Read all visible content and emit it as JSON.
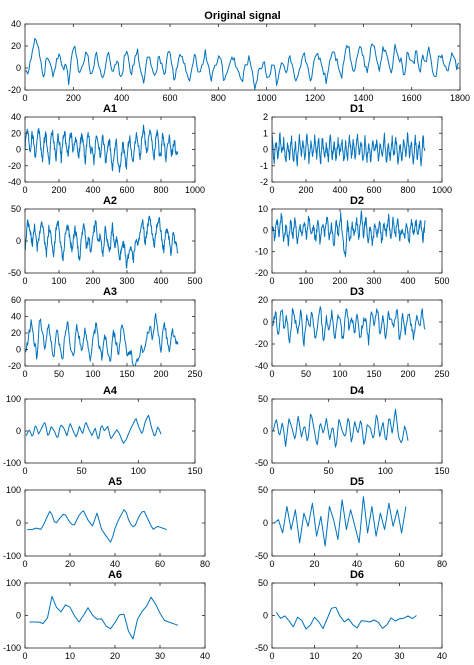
{
  "style": {
    "line_color": "#0072BD",
    "axes_color": "#262626",
    "background": "#ffffff",
    "grid": false
  },
  "chart_data": [
    {
      "type": "line",
      "title": "Original signal",
      "xlim": [
        0,
        1800
      ],
      "ylim": [
        -20,
        40
      ],
      "xticks": [
        "0",
        "200",
        "400",
        "600",
        "800",
        "1000",
        "1200",
        "1400",
        "1600",
        "1800"
      ],
      "yticks": [
        "-20",
        "0",
        "20",
        "40"
      ],
      "series": [
        {
          "n": 1800,
          "values": [
            0,
            -5,
            10,
            25,
            20,
            5,
            -8,
            12,
            3,
            -10,
            8,
            15,
            -3,
            6,
            -12,
            10,
            18,
            2,
            -6,
            9,
            14,
            -8,
            4,
            12,
            0,
            -10,
            6,
            16,
            -4,
            8,
            2,
            -12,
            10,
            14,
            -6,
            4,
            18,
            -2,
            -14,
            6,
            12,
            0,
            -8,
            10,
            4,
            -6,
            14,
            8,
            -10,
            2,
            12,
            6,
            -4,
            -16,
            8,
            10,
            -6,
            4,
            14,
            2,
            -10,
            0,
            8,
            12,
            -14,
            -4,
            6,
            10,
            2,
            -8,
            -12,
            4,
            8,
            0,
            -18,
            -6,
            2,
            6,
            -10,
            -4,
            8,
            -14,
            0,
            4,
            -6,
            10,
            2,
            -16,
            -8,
            6,
            12,
            0,
            -10,
            4,
            14,
            8,
            -2,
            -12,
            6,
            18,
            10,
            2,
            -8,
            16,
            22,
            6,
            -4,
            14,
            20,
            8,
            -6,
            12,
            24,
            10,
            0,
            16,
            18,
            4,
            -2,
            20,
            12,
            6,
            -8,
            14,
            8,
            2,
            18,
            -4,
            10,
            4,
            16,
            0,
            -10,
            8,
            12,
            2,
            -6,
            10,
            14,
            -2,
            6
          ]
        }
      ]
    },
    {
      "type": "line",
      "title": "A1",
      "xlim": [
        0,
        1000
      ],
      "ylim": [
        -40,
        40
      ],
      "xticks": [
        "0",
        "200",
        "400",
        "600",
        "800",
        "1000"
      ],
      "yticks": [
        "-40",
        "-20",
        "0",
        "20",
        "40"
      ],
      "series": [
        {
          "n": 900,
          "values": [
            5,
            25,
            15,
            -5,
            20,
            10,
            -10,
            15,
            25,
            5,
            -15,
            10,
            20,
            0,
            -20,
            15,
            22,
            5,
            -10,
            18,
            8,
            -12,
            12,
            24,
            2,
            -8,
            16,
            20,
            -6,
            10,
            14,
            -14,
            8,
            18,
            4,
            -16,
            12,
            20,
            -4,
            6,
            -18,
            10,
            16,
            0,
            -10,
            14,
            8,
            -20,
            4,
            12,
            -8,
            -26,
            0,
            10,
            -14,
            -30,
            -6,
            8,
            -10,
            -22,
            4,
            14,
            -4,
            -16,
            10,
            20,
            2,
            -12,
            16,
            28,
            8,
            -6,
            18,
            26,
            4,
            -14,
            12,
            22,
            -2,
            -10,
            20,
            8,
            -16,
            6,
            16,
            -6,
            0,
            12,
            -10,
            2
          ]
        }
      ]
    },
    {
      "type": "line",
      "title": "D1",
      "xlim": [
        0,
        1000
      ],
      "ylim": [
        -2,
        2
      ],
      "xticks": [
        "0",
        "200",
        "400",
        "600",
        "800",
        "1000"
      ],
      "yticks": [
        "-2",
        "-1",
        "0",
        "1",
        "2"
      ],
      "series": [
        {
          "n": 900,
          "values": [
            0.8,
            -0.9,
            0.5,
            -0.6,
            0.9,
            -0.4,
            0.6,
            -0.8,
            0.3,
            -0.5,
            0.7,
            -0.7,
            0.4,
            -0.9,
            0.8,
            -0.3,
            0.5,
            -0.6,
            0.9,
            -0.8,
            0.4,
            -0.5,
            0.7,
            -0.4,
            0.6,
            -0.9,
            0.8,
            -0.6,
            0.3,
            -0.7,
            0.9,
            -0.5,
            0.5,
            -0.8,
            0.6,
            -0.3,
            0.7,
            -0.9,
            0.4,
            -0.6,
            0.8,
            -0.5,
            0.6,
            -0.7,
            0.9,
            -0.4,
            0.5,
            -0.8,
            0.7,
            -0.6,
            0.4,
            -0.9,
            0.8,
            -0.3,
            0.6,
            -0.7,
            0.5,
            -0.5,
            0.9,
            -0.8,
            0.3,
            -0.6,
            0.7,
            -0.4,
            0.8,
            -0.9,
            0.5,
            -0.7,
            0.6,
            -0.5,
            0.9,
            -0.3,
            0.4,
            -0.8,
            0.7,
            -0.6,
            0.5,
            -0.9,
            0.8,
            -0.4
          ]
        }
      ]
    },
    {
      "type": "line",
      "title": "A2",
      "xlim": [
        0,
        500
      ],
      "ylim": [
        -50,
        50
      ],
      "xticks": [
        "0",
        "100",
        "200",
        "300",
        "400",
        "500"
      ],
      "yticks": [
        "-50",
        "0",
        "50"
      ],
      "series": [
        {
          "n": 450,
          "values": [
            -10,
            30,
            15,
            -5,
            25,
            -15,
            10,
            35,
            5,
            -20,
            20,
            10,
            -25,
            15,
            30,
            -5,
            -30,
            10,
            25,
            0,
            -15,
            20,
            5,
            -35,
            10,
            25,
            -10,
            5,
            -20,
            15,
            30,
            -5,
            10,
            -25,
            20,
            0,
            -15,
            25,
            -10,
            5,
            -30,
            -15,
            0,
            -40,
            -20,
            -5,
            -30,
            5,
            -10,
            15,
            30,
            -5,
            20,
            40,
            10,
            -10,
            25,
            35,
            5,
            -15,
            20,
            10,
            -20,
            15,
            -5,
            -15
          ]
        }
      ]
    },
    {
      "type": "line",
      "title": "D2",
      "xlim": [
        0,
        500
      ],
      "ylim": [
        -20,
        10
      ],
      "xticks": [
        "0",
        "100",
        "200",
        "300",
        "400",
        "500"
      ],
      "yticks": [
        "-20",
        "-10",
        "0",
        "10"
      ],
      "series": [
        {
          "n": 450,
          "values": [
            3,
            -4,
            5,
            -2,
            8,
            -5,
            2,
            -6,
            4,
            -3,
            6,
            -7,
            3,
            -2,
            5,
            -4,
            7,
            -3,
            2,
            -5,
            4,
            -6,
            3,
            -2,
            6,
            -4,
            2,
            -8,
            5,
            -3,
            7,
            -4,
            -13,
            4,
            -6,
            3,
            -2,
            5,
            -4,
            9,
            -3,
            6,
            -5,
            2,
            -7,
            4,
            -3,
            5,
            -6,
            3,
            -2,
            7,
            -4,
            5,
            -3,
            6,
            -5,
            2,
            -4,
            3,
            -6,
            5,
            -2,
            4,
            -3,
            6,
            -5,
            3
          ]
        }
      ]
    },
    {
      "type": "line",
      "title": "A3",
      "xlim": [
        0,
        250
      ],
      "ylim": [
        -20,
        60
      ],
      "xticks": [
        "0",
        "50",
        "100",
        "150",
        "200",
        "250"
      ],
      "yticks": [
        "-20",
        "0",
        "20",
        "40",
        "60"
      ],
      "series": [
        {
          "n": 225,
          "values": [
            -5,
            15,
            35,
            10,
            -10,
            40,
            20,
            0,
            30,
            10,
            -10,
            25,
            5,
            -15,
            20,
            35,
            0,
            -10,
            30,
            15,
            -5,
            25,
            10,
            -15,
            15,
            30,
            5,
            -10,
            20,
            0,
            -15,
            25,
            10,
            -5,
            30,
            15,
            -10,
            0,
            -15,
            -20,
            -10,
            5,
            -5,
            15,
            30,
            10,
            40,
            20,
            0,
            35,
            15,
            -5,
            25,
            10,
            5
          ]
        }
      ]
    },
    {
      "type": "line",
      "title": "D3",
      "xlim": [
        0,
        250
      ],
      "ylim": [
        -40,
        20
      ],
      "xticks": [
        "0",
        "50",
        "100",
        "150",
        "200",
        "250"
      ],
      "yticks": [
        "-40",
        "-20",
        "0",
        "20"
      ],
      "series": [
        {
          "n": 225,
          "values": [
            -5,
            10,
            -15,
            15,
            -5,
            5,
            -20,
            10,
            0,
            -10,
            15,
            -25,
            5,
            -5,
            10,
            -15,
            0,
            15,
            -20,
            5,
            -10,
            10,
            -15,
            5,
            0,
            -20,
            15,
            -5,
            5,
            -10,
            10,
            -15,
            0,
            5,
            -20,
            10,
            -5,
            15,
            -10,
            5,
            -15,
            10,
            0,
            -5,
            15,
            -20,
            5,
            -10,
            10,
            0,
            -15,
            5,
            -5,
            10,
            -10
          ]
        }
      ]
    },
    {
      "type": "line",
      "title": "A4",
      "xlim": [
        0,
        150
      ],
      "ylim": [
        -100,
        100
      ],
      "xticks": [
        "0",
        "50",
        "100",
        "150"
      ],
      "yticks": [
        "-100",
        "0",
        "100"
      ],
      "series": [
        {
          "n": 120,
          "values": [
            -15,
            5,
            -20,
            20,
            -10,
            10,
            30,
            -20,
            15,
            0,
            -25,
            20,
            10,
            -15,
            25,
            0,
            -20,
            15,
            -10,
            30,
            5,
            -15,
            10,
            -30,
            20,
            0,
            15,
            -25,
            -10,
            5,
            -15,
            -40,
            -25,
            0,
            20,
            40,
            10,
            -10,
            30,
            50,
            10,
            -20,
            15,
            -10
          ]
        }
      ]
    },
    {
      "type": "line",
      "title": "D4",
      "xlim": [
        0,
        150
      ],
      "ylim": [
        -50,
        50
      ],
      "xticks": [
        "0",
        "50",
        "100",
        "150"
      ],
      "yticks": [
        "-50",
        "0",
        "50"
      ],
      "series": [
        {
          "n": 120,
          "values": [
            0,
            20,
            -10,
            15,
            -25,
            20,
            5,
            -15,
            25,
            -10,
            10,
            -20,
            30,
            5,
            -25,
            15,
            -5,
            20,
            -15,
            10,
            -30,
            20,
            0,
            -10,
            25,
            -20,
            15,
            -5,
            20,
            -25,
            10,
            5,
            -15,
            30,
            -10,
            15,
            -20,
            25,
            -5,
            35,
            -10,
            -20,
            10,
            -15
          ]
        }
      ]
    },
    {
      "type": "line",
      "title": "A5",
      "xlim": [
        0,
        80
      ],
      "ylim": [
        -100,
        100
      ],
      "xticks": [
        "0",
        "20",
        "40",
        "60",
        "80"
      ],
      "yticks": [
        "-100",
        "0",
        "100"
      ],
      "series": [
        {
          "n": 63,
          "values": [
            -20,
            -20,
            -15,
            -20,
            10,
            40,
            -5,
            15,
            30,
            5,
            -10,
            20,
            40,
            10,
            -10,
            30,
            -20,
            -40,
            -60,
            -10,
            20,
            45,
            0,
            -15,
            20,
            40,
            10,
            -20,
            -10,
            -15,
            -20
          ]
        }
      ]
    },
    {
      "type": "line",
      "title": "D5",
      "xlim": [
        0,
        80
      ],
      "ylim": [
        -50,
        50
      ],
      "xticks": [
        "0",
        "20",
        "40",
        "60",
        "80"
      ],
      "yticks": [
        "-50",
        "0",
        "50"
      ],
      "series": [
        {
          "n": 63,
          "values": [
            0,
            5,
            -15,
            25,
            -10,
            20,
            -30,
            15,
            -5,
            30,
            -20,
            10,
            -35,
            25,
            5,
            -25,
            35,
            -10,
            20,
            -5,
            -30,
            40,
            -15,
            25,
            -20,
            15,
            -10,
            30,
            -5,
            20,
            -15,
            25
          ]
        }
      ]
    },
    {
      "type": "line",
      "title": "A6",
      "xlim": [
        0,
        40
      ],
      "ylim": [
        -100,
        100
      ],
      "xticks": [
        "0",
        "10",
        "20",
        "30",
        "40"
      ],
      "yticks": [
        "-100",
        "0",
        "100"
      ],
      "series": [
        {
          "n": 34,
          "values": [
            -20,
            -20,
            -20,
            -25,
            -5,
            70,
            15,
            10,
            40,
            20,
            -10,
            -25,
            15,
            30,
            -20,
            -5,
            -15,
            -50,
            -30,
            -10,
            20,
            -25,
            -95,
            -20,
            10,
            20,
            60,
            40,
            10,
            -15,
            -20,
            -25,
            -30
          ]
        }
      ]
    },
    {
      "type": "line",
      "title": "D6",
      "xlim": [
        0,
        40
      ],
      "ylim": [
        -50,
        50
      ],
      "xticks": [
        "0",
        "10",
        "20",
        "30",
        "40"
      ],
      "yticks": [
        "-50",
        "0",
        "50"
      ],
      "series": [
        {
          "n": 34,
          "values": [
            5,
            -5,
            0,
            -10,
            -20,
            5,
            -15,
            -25,
            -5,
            0,
            -25,
            -10,
            10,
            15,
            0,
            -10,
            -5,
            -15,
            -20,
            -5,
            -10,
            -10,
            -5,
            -15,
            -25,
            0,
            -10,
            -5,
            -5,
            0,
            -5,
            0
          ]
        }
      ]
    }
  ]
}
